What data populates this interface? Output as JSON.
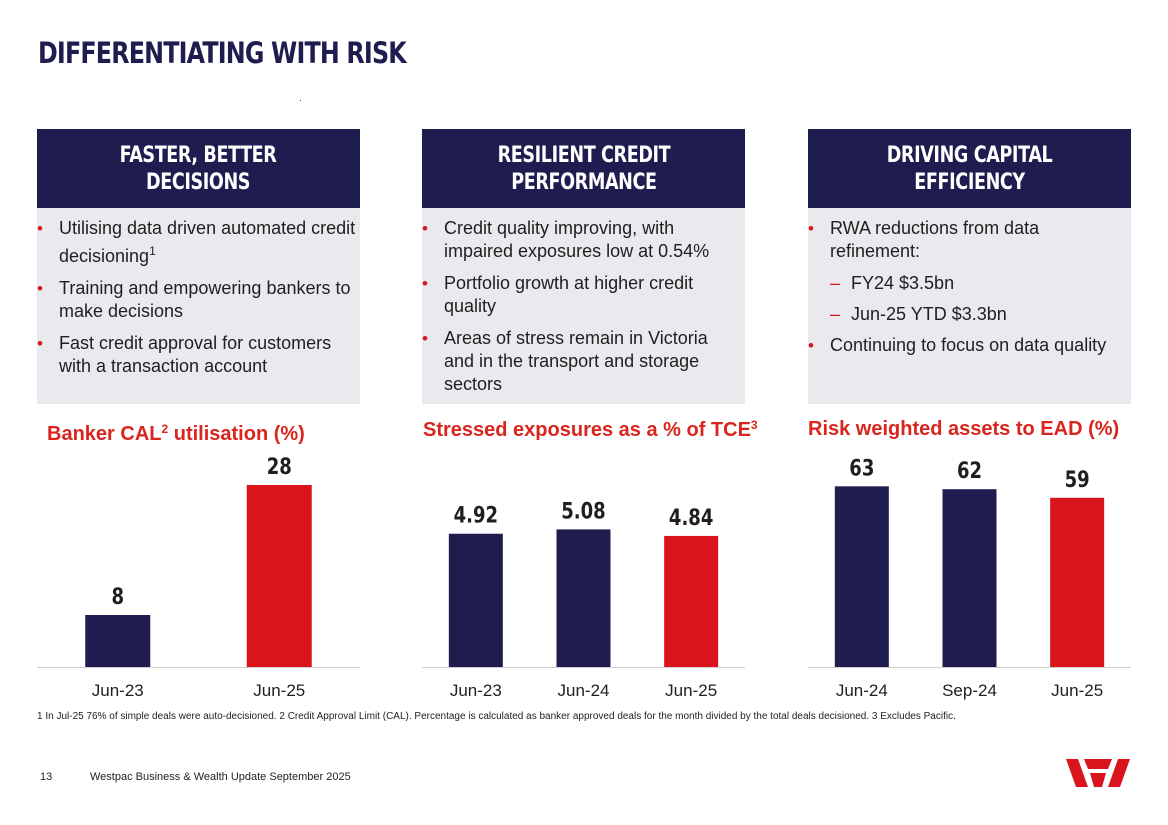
{
  "page": {
    "title": "DIFFERENTIATING WITH RISK",
    "page_number": "13",
    "footer_text": "Westpac Business & Wealth Update September 2025",
    "footnote": "1 In Jul-25 76% of simple deals were auto-decisioned. 2 Credit Approval Limit (CAL). Percentage is calculated as banker approved deals for the month divided by the total deals decisioned. 3 Excludes Pacific.",
    "logo_icon": "westpac-logo-icon"
  },
  "colors": {
    "navy": "#1f1c4f",
    "red": "#d9141c",
    "panel_bg": "#e9e9ee",
    "axis": "#cfcfcf"
  },
  "panels": [
    {
      "heading": "FASTER, BETTER\nDECISIONS",
      "bullets": [
        {
          "text": "Utilising data driven automated credit decisioning",
          "sup": "1"
        },
        {
          "text": "Training and empowering bankers to make decisions"
        },
        {
          "text": "Fast credit approval for customers with a transaction account"
        }
      ]
    },
    {
      "heading": "RESILIENT CREDIT\nPERFORMANCE",
      "bullets": [
        {
          "text": "Credit quality improving, with impaired exposures low at 0.54%"
        },
        {
          "text": "Portfolio growth at higher credit quality"
        },
        {
          "text": "Areas of stress remain in Victoria and in the transport and storage sectors"
        }
      ]
    },
    {
      "heading": "DRIVING CAPITAL\nEFFICIENCY",
      "bullets": [
        {
          "text": "RWA reductions from data refinement:"
        },
        {
          "text": "FY24 $3.5bn",
          "sub": true
        },
        {
          "text": "Jun-25 YTD $3.3bn",
          "sub": true
        },
        {
          "text": "Continuing to focus on data quality"
        }
      ]
    }
  ],
  "chart_data": [
    {
      "type": "bar",
      "title": "Banker CAL",
      "title_sup": "2",
      "title_suffix": " utilisation (%)",
      "categories": [
        "Jun-23",
        "Jun-25"
      ],
      "values": [
        8,
        28
      ],
      "value_labels": [
        "8",
        "28"
      ],
      "highlight_last": true,
      "ylim": [
        0,
        30
      ]
    },
    {
      "type": "bar",
      "title": "Stressed exposures as a % of TCE",
      "title_sup": "3",
      "title_suffix": "",
      "categories": [
        "Jun-23",
        "Jun-24",
        "Jun-25"
      ],
      "values": [
        4.92,
        5.08,
        4.84
      ],
      "value_labels": [
        "4.92",
        "5.08",
        "4.84"
      ],
      "highlight_last": true,
      "ylim": [
        0,
        7.2
      ]
    },
    {
      "type": "bar",
      "title": "Risk weighted assets to EAD (%)",
      "title_sup": "",
      "title_suffix": "",
      "categories": [
        "Jun-24",
        "Sep-24",
        "Jun-25"
      ],
      "values": [
        63,
        62,
        59
      ],
      "value_labels": [
        "63",
        "62",
        "59"
      ],
      "highlight_last": true,
      "ylim": [
        0,
        68
      ]
    }
  ]
}
